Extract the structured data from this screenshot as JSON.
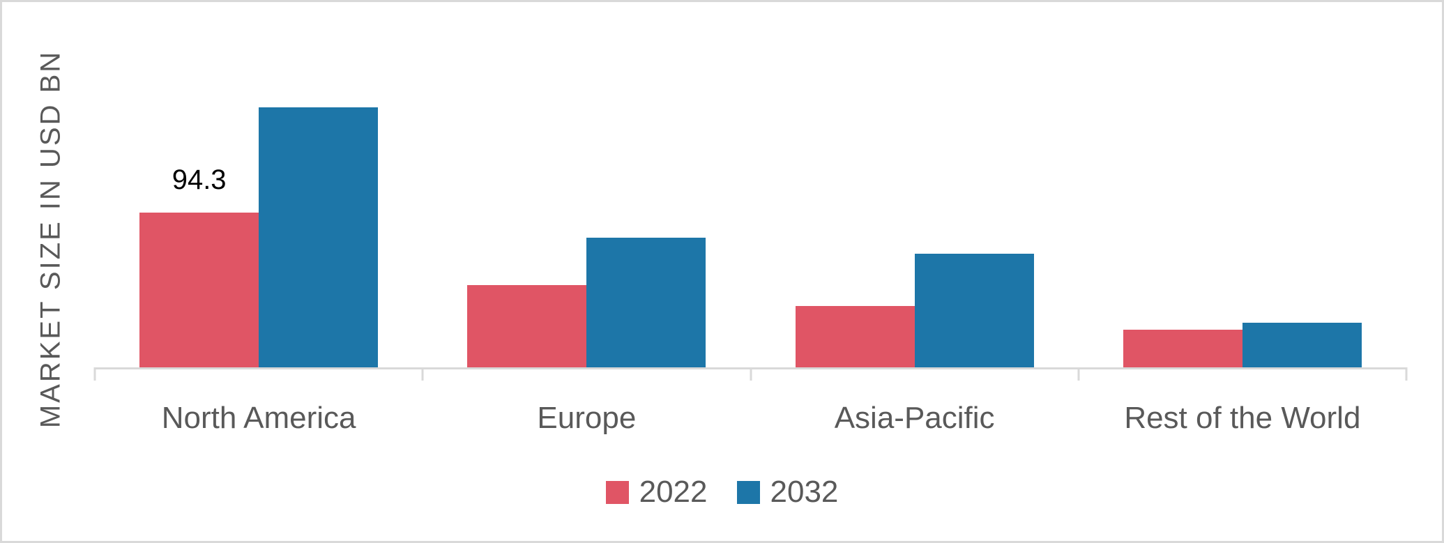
{
  "chart_data": {
    "type": "bar",
    "title": "",
    "xlabel": "",
    "ylabel": "MARKET SIZE IN USD BN",
    "categories": [
      "North America",
      "Europe",
      "Asia-Pacific",
      "Rest of the World"
    ],
    "series": [
      {
        "name": "2022",
        "color": "#e05565",
        "values": [
          94.3,
          50.1,
          37.4,
          22.9
        ],
        "data_labels": [
          "94.3",
          "",
          "",
          ""
        ]
      },
      {
        "name": "2032",
        "color": "#1d76a8",
        "values": [
          158.4,
          79.0,
          69.2,
          27.2
        ],
        "data_labels": [
          "",
          "",
          "",
          ""
        ]
      }
    ],
    "ylim": [
      0,
      180
    ],
    "grid": false,
    "y_axis_ticks_visible": false,
    "x_axis_boundary_ticks": 5,
    "legend_position": "bottom",
    "colors": {
      "axis_line": "#d9d9d9",
      "tick_mark": "#d9d9d9",
      "axis_text": "#595959",
      "data_label_text": "#000000",
      "background": "#ffffff",
      "frame_border": "#d9d9d9"
    }
  }
}
